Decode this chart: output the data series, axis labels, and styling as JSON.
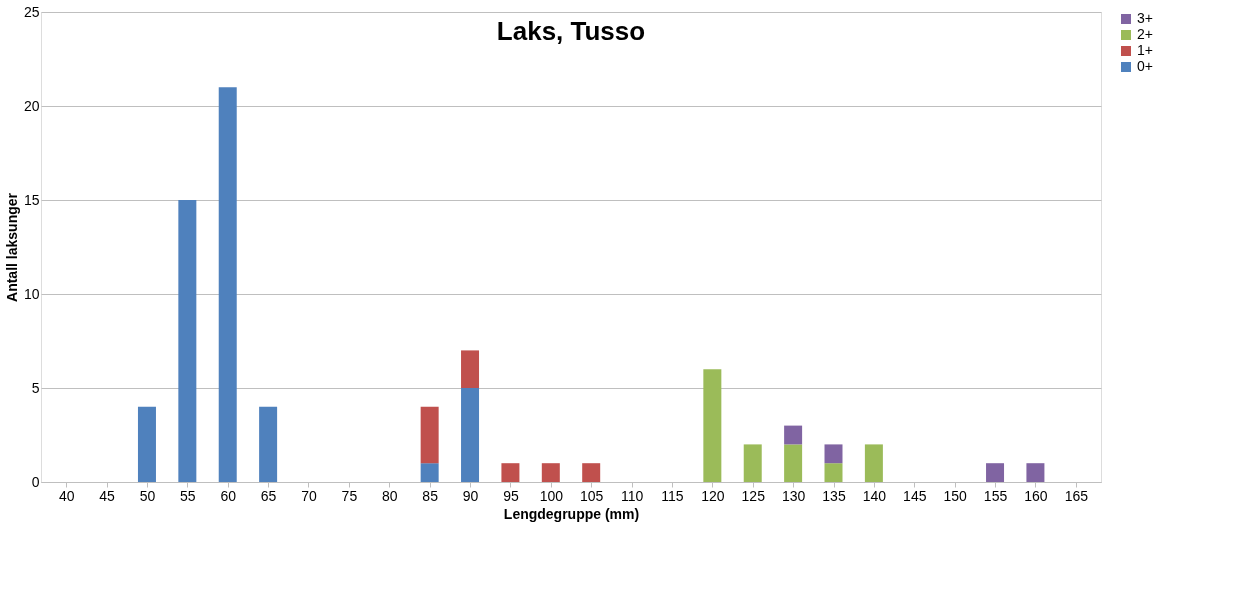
{
  "chart_data": {
    "type": "bar",
    "title": "Laks, Tusso",
    "xlabel": "Lengdegruppe (mm)",
    "ylabel": "Antall laksunger",
    "categories": [
      "40",
      "45",
      "50",
      "55",
      "60",
      "65",
      "70",
      "75",
      "80",
      "85",
      "90",
      "95",
      "100",
      "105",
      "110",
      "115",
      "120",
      "125",
      "130",
      "135",
      "140",
      "145",
      "150",
      "155",
      "160",
      "165"
    ],
    "stacked": true,
    "series": [
      {
        "name": "0+",
        "color": "#4f81bd",
        "values": [
          null,
          null,
          4,
          15,
          21,
          4,
          null,
          null,
          null,
          1,
          5,
          null,
          null,
          null,
          null,
          null,
          null,
          null,
          null,
          null,
          null,
          null,
          null,
          null,
          null,
          null
        ]
      },
      {
        "name": "1+",
        "color": "#c0504d",
        "values": [
          null,
          null,
          null,
          null,
          null,
          null,
          null,
          null,
          null,
          3,
          2,
          1,
          1,
          1,
          null,
          null,
          null,
          null,
          null,
          null,
          null,
          null,
          null,
          null,
          null,
          null
        ]
      },
      {
        "name": "2+",
        "color": "#9bbb59",
        "values": [
          null,
          null,
          null,
          null,
          null,
          null,
          null,
          null,
          null,
          null,
          null,
          null,
          null,
          null,
          null,
          null,
          6,
          2,
          2,
          1,
          2,
          null,
          null,
          null,
          null,
          null
        ]
      },
      {
        "name": "3+",
        "color": "#8064a2",
        "values": [
          null,
          null,
          null,
          null,
          null,
          null,
          null,
          null,
          null,
          null,
          null,
          null,
          null,
          null,
          null,
          null,
          null,
          null,
          1,
          1,
          null,
          null,
          null,
          1,
          1,
          null
        ]
      }
    ],
    "ylim": [
      0,
      25
    ],
    "yticks": [
      0,
      5,
      10,
      15,
      20,
      25
    ],
    "grid": "y",
    "legend": "right"
  }
}
